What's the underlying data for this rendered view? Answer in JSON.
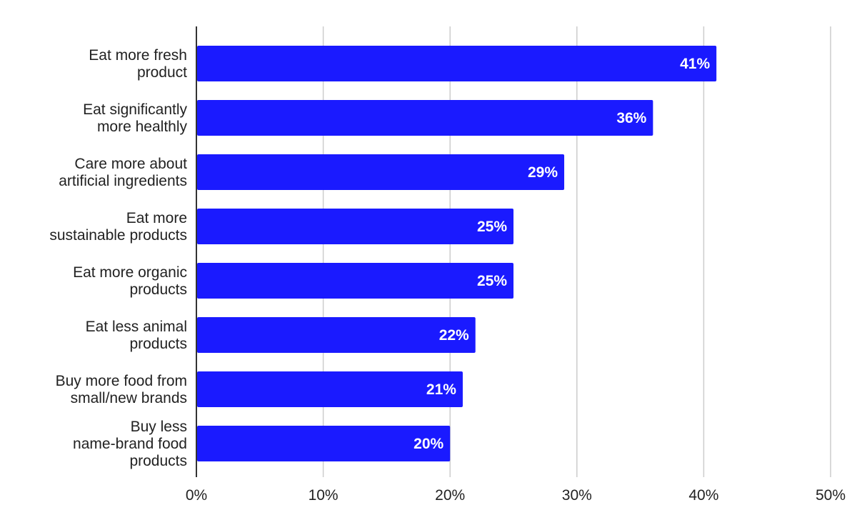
{
  "chart_data": {
    "type": "bar",
    "orientation": "horizontal",
    "categories": [
      "Eat more fresh product",
      "Eat significantly more healthly",
      "Care more about artificial ingredients",
      "Eat more sustainable products",
      "Eat more organic products",
      "Eat less animal products",
      "Buy more food from small/new brands",
      "Buy less name-brand food products"
    ],
    "category_lines": [
      [
        "Eat more fresh",
        "product"
      ],
      [
        "Eat significantly",
        "more healthly"
      ],
      [
        "Care more about",
        "artificial ingredients"
      ],
      [
        "Eat more",
        "sustainable products"
      ],
      [
        "Eat more organic",
        "products"
      ],
      [
        "Eat less animal",
        "products"
      ],
      [
        "Buy more food from",
        "small/new brands"
      ],
      [
        "Buy less",
        "name-brand food",
        "products"
      ]
    ],
    "values": [
      41,
      36,
      29,
      25,
      25,
      22,
      21,
      20
    ],
    "data_labels": [
      "41%",
      "36%",
      "29%",
      "25%",
      "25%",
      "22%",
      "21%",
      "20%"
    ],
    "xlim": [
      0,
      50
    ],
    "x_ticks": [
      0,
      10,
      20,
      30,
      40,
      50
    ],
    "x_tick_labels": [
      "0%",
      "10%",
      "20%",
      "30%",
      "40%",
      "50%"
    ],
    "title": "",
    "xlabel": "",
    "ylabel": "",
    "grid": true,
    "legend": "none",
    "bar_color": "#1a1aff",
    "grid_color": "#cccccc",
    "axis_color": "#333333"
  }
}
